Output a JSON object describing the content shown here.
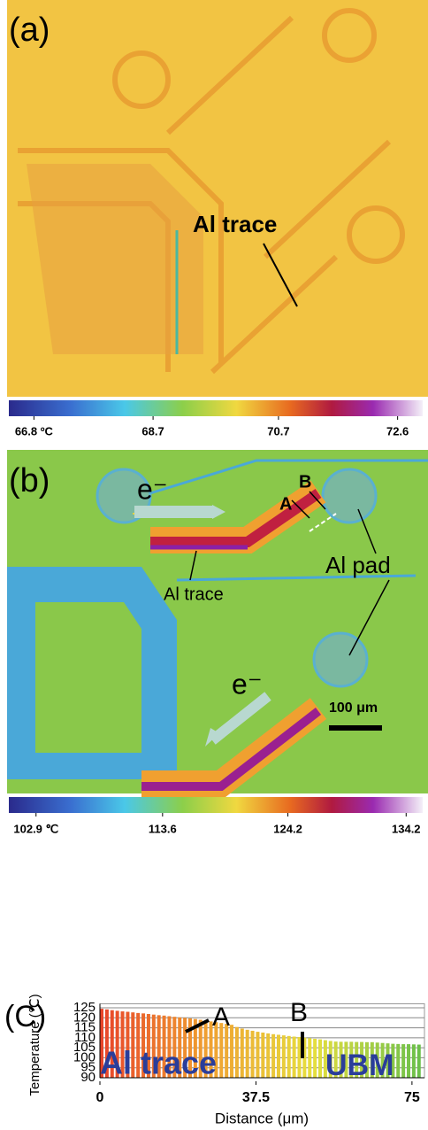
{
  "panel_a": {
    "label": "(a)",
    "annotation": "Al trace",
    "colorbar": {
      "lim": [
        66.4,
        73.0
      ],
      "ticks": [
        {
          "value": 66.8,
          "label": "66.8 ºC"
        },
        68.7,
        70.7,
        72.6
      ]
    }
  },
  "panel_b": {
    "label": "(b)",
    "point_a": "A",
    "point_b": "B",
    "pad_label": "Al pad",
    "trace_label": "Al trace",
    "electron_labels": [
      "e⁻",
      "e⁻"
    ],
    "scale_bar": "100 μm",
    "colorbar": {
      "lim": [
        100.6,
        135.6
      ],
      "ticks": [
        {
          "value": 102.9,
          "label": "102.9 ℃"
        },
        113.6,
        124.2,
        134.2
      ]
    }
  },
  "chart_data": {
    "type": "bar",
    "panel_label": "(C)",
    "annotations": [
      "A",
      "B",
      "Al trace",
      "UBM"
    ],
    "x_label": "Distance (μm)",
    "y_label": "Temperature (℃)",
    "x": [
      0,
      1.25,
      2.5,
      3.75,
      5,
      6.25,
      7.5,
      8.75,
      10,
      11.25,
      12.5,
      13.75,
      15,
      16.25,
      17.5,
      18.75,
      20,
      21.25,
      22.5,
      23.75,
      25,
      26.25,
      27.5,
      28.75,
      30,
      31.25,
      32.5,
      33.75,
      35,
      36.25,
      37.5,
      38.75,
      40,
      41.25,
      42.5,
      43.75,
      45,
      46.25,
      47.5,
      48.75,
      50,
      51.25,
      52.5,
      53.75,
      55,
      56.25,
      57.5,
      58.75,
      60,
      61.25,
      62.5,
      63.75,
      65,
      66.25,
      67.5,
      68.75,
      70,
      71.25,
      72.5,
      73.75,
      75,
      76.25
    ],
    "values": [
      124.5,
      124.2,
      123.8,
      123.5,
      123.2,
      123.0,
      122.7,
      122.4,
      122.2,
      121.9,
      121.6,
      121.3,
      121.1,
      120.8,
      120.5,
      120.2,
      120.0,
      119.7,
      119.4,
      119.0,
      118.6,
      118.2,
      117.8,
      117.4,
      117.0,
      116.5,
      115.4,
      114.6,
      114.0,
      113.5,
      113.0,
      112.6,
      112.2,
      111.8,
      111.5,
      111.2,
      110.9,
      110.6,
      110.4,
      110.1,
      109.8,
      109.5,
      109.2,
      108.8,
      108.4,
      108.1,
      108.0,
      108.0,
      108.0,
      107.9,
      107.9,
      107.8,
      107.8,
      107.6,
      107.4,
      107.2,
      107.0,
      106.9,
      106.8,
      106.8,
      106.7,
      106.6
    ],
    "color_scale": [
      "#e8452a",
      "#f0a030",
      "#e6df3e",
      "#6cc04a"
    ],
    "xlim": [
      0,
      78
    ],
    "xticks": [
      0,
      37.5,
      75
    ],
    "ylim": [
      90,
      127
    ],
    "yticks": [
      90,
      95,
      100,
      105,
      110,
      115,
      120,
      125
    ],
    "grid": true
  }
}
